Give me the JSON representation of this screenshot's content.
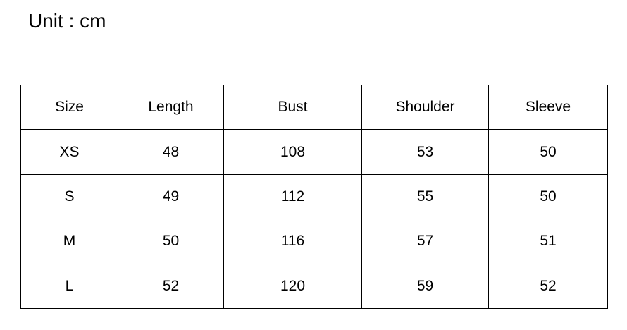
{
  "unit_label": "Unit : cm",
  "colors": {
    "background": "#ffffff",
    "text": "#000000",
    "border": "#000000"
  },
  "chart_data": {
    "type": "table",
    "title": "Unit : cm",
    "columns": [
      "Size",
      "Length",
      "Bust",
      "Shoulder",
      "Sleeve"
    ],
    "rows": [
      [
        "XS",
        "48",
        "108",
        "53",
        "50"
      ],
      [
        "S",
        "49",
        "112",
        "55",
        "50"
      ],
      [
        "M",
        "50",
        "116",
        "57",
        "51"
      ],
      [
        "L",
        "52",
        "120",
        "59",
        "52"
      ]
    ]
  }
}
